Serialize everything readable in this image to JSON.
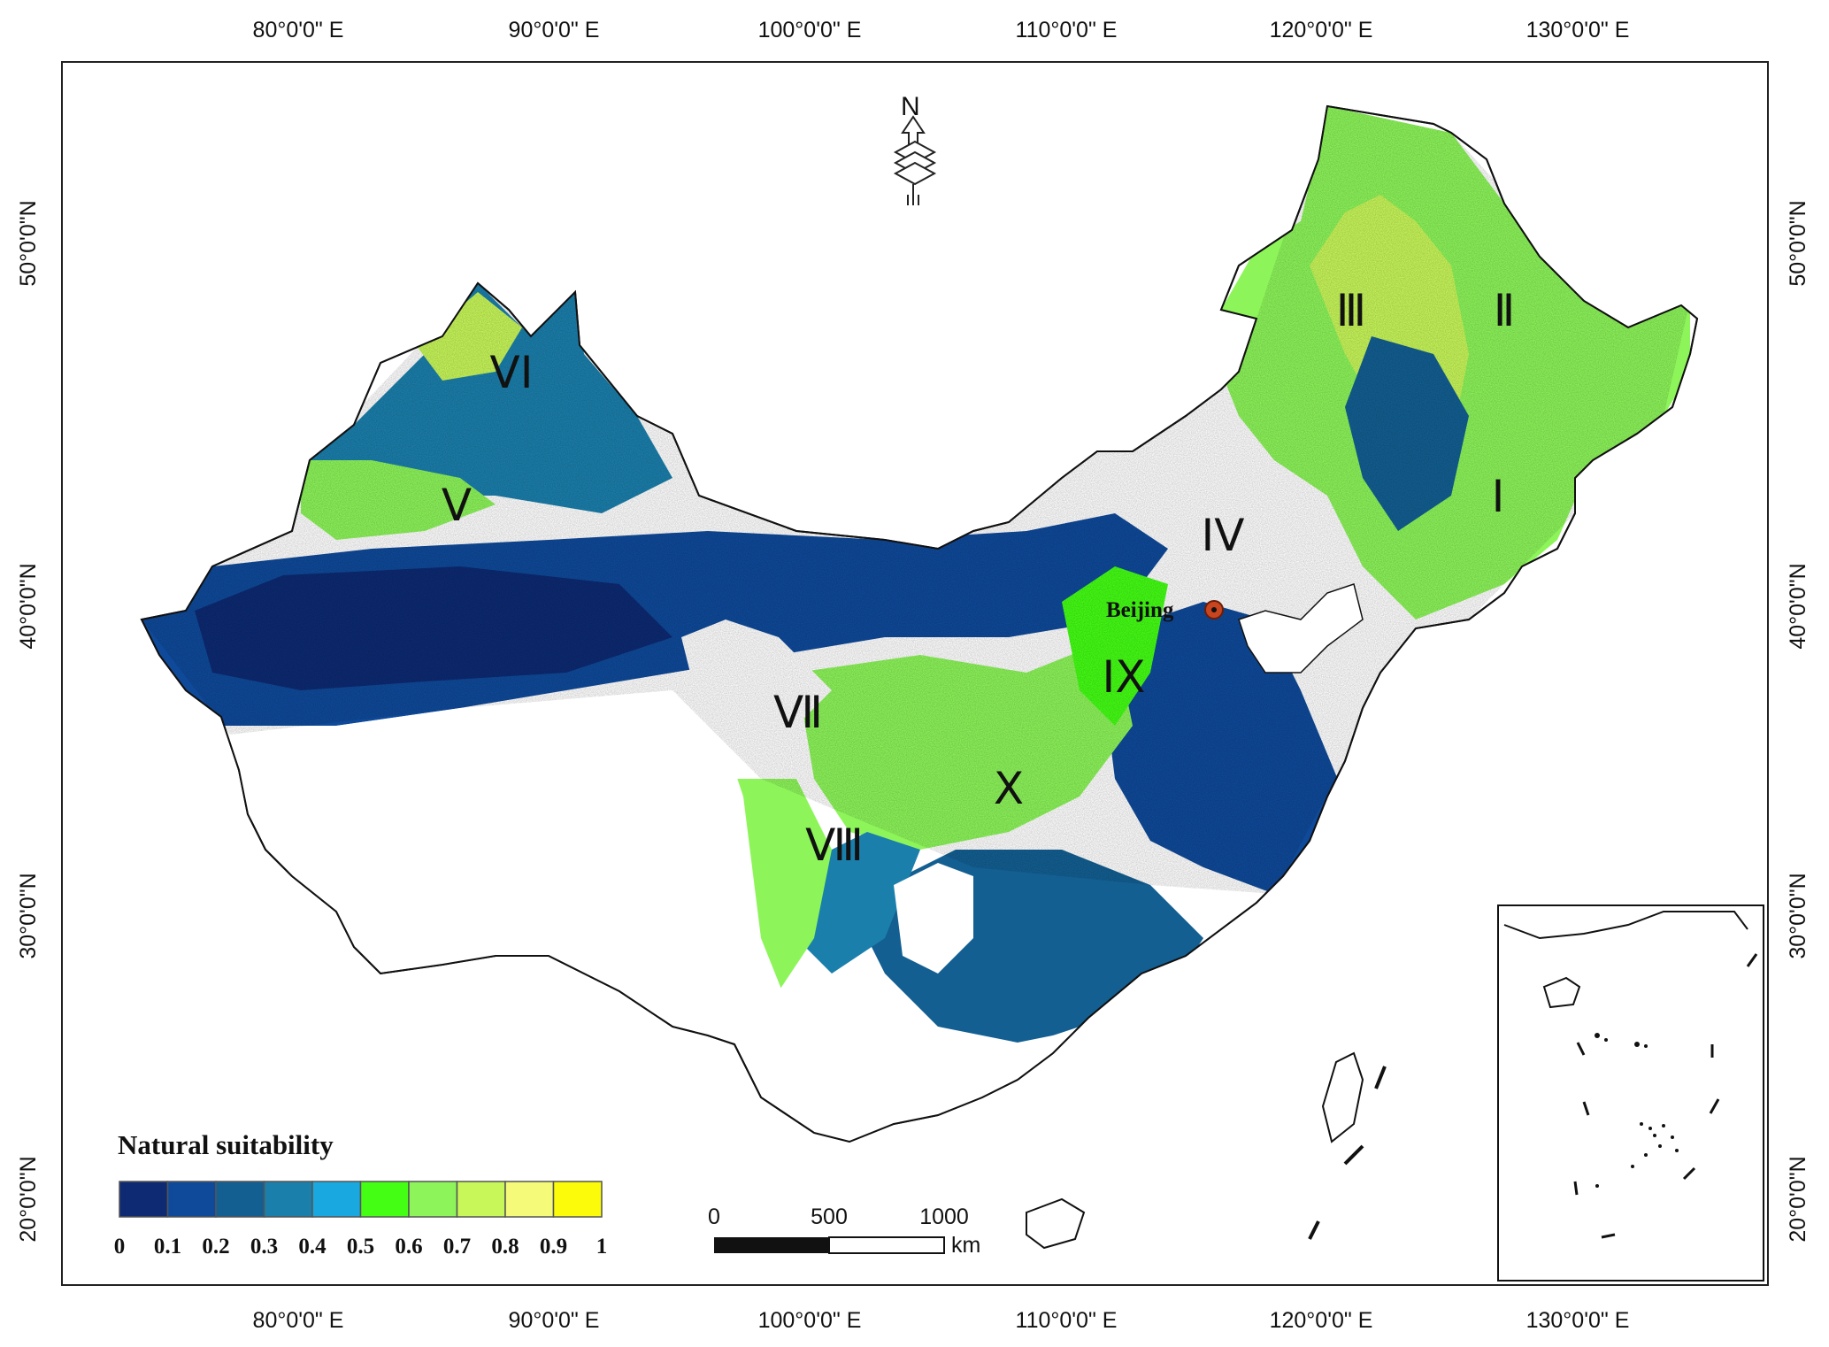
{
  "map": {
    "grid": {
      "longitudes": [
        "80°0'0\" E",
        "90°0'0\" E",
        "100°0'0\" E",
        "110°0'0\" E",
        "120°0'0\" E",
        "130°0'0\" E"
      ],
      "latitudes": [
        "50°0'0\"N",
        "40°0'0\"N",
        "30°0'0\"N",
        "20°0'0\"N"
      ]
    },
    "regions": [
      "I",
      "II",
      "III",
      "IV",
      "V",
      "VI",
      "VII",
      "VIII",
      "IX",
      "X"
    ],
    "region_glyphs": {
      "I": "I",
      "II": "Ⅱ",
      "III": "Ⅲ",
      "IV": "IV",
      "V": "V",
      "VI": "VI",
      "VII": "Ⅶ",
      "VIII": "Ⅷ",
      "IX": "IX",
      "X": "X"
    },
    "city": {
      "name": "Beijing",
      "marker_color": "#c8451f"
    },
    "north_arrow": {
      "label": "N"
    },
    "legend": {
      "title": "Natural suitability",
      "labels": [
        "0",
        "0.1",
        "0.2",
        "0.3",
        "0.4",
        "0.5",
        "0.6",
        "0.7",
        "0.8",
        "0.9",
        "1"
      ],
      "colors": [
        "#0d2a72",
        "#0f4a9a",
        "#135f92",
        "#1b7fac",
        "#1aa8e0",
        "#44ff14",
        "#8df55a",
        "#c8f75a",
        "#f5fb78",
        "#fcfc0a"
      ]
    },
    "scale_bar": {
      "labels": [
        "0",
        "500",
        "1000"
      ],
      "unit": "km"
    },
    "colors": {
      "frame": "#222222",
      "boundary": "#111111",
      "land_unsuitable": "#ffffff"
    }
  }
}
